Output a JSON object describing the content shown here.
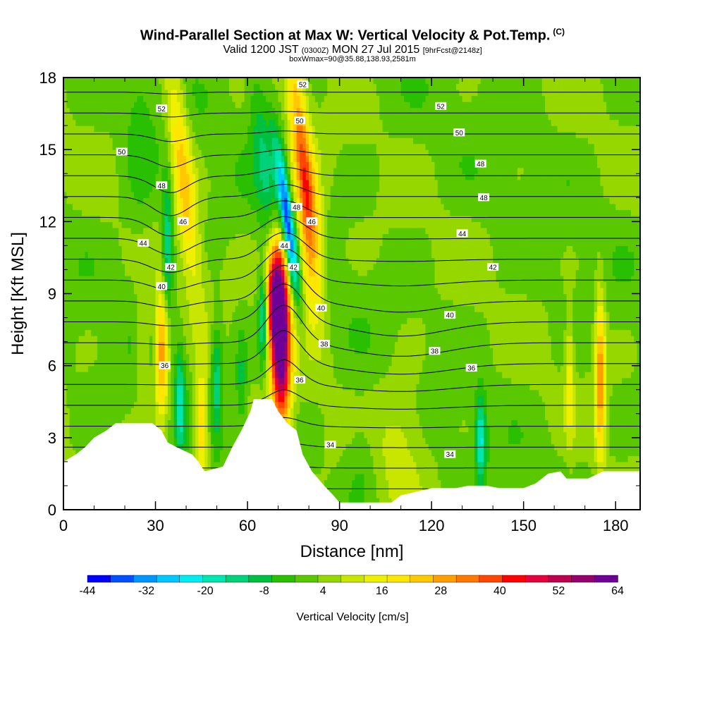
{
  "title": "Wind-Parallel Section at Max W: Vertical Velocity & Pot.Temp.",
  "copyright": "(C)",
  "subtitle_main": "Valid 1200 JST",
  "subtitle_utc": "(0300Z)",
  "subtitle_date": "MON 27 Jul 2015",
  "subtitle_fcst": "[9hrFcst@2148z]",
  "subtitle_box": "boxWmax=90@35.88,138.93,2581m",
  "chart_data": {
    "type": "heatmap",
    "xlabel": "Distance [nm]",
    "ylabel": "Height [Kft MSL]",
    "xlim": [
      0,
      188
    ],
    "ylim": [
      0,
      18
    ],
    "x_ticks": [
      "0",
      "30",
      "60",
      "90",
      "120",
      "150",
      "180"
    ],
    "y_ticks": [
      "0",
      "3",
      "6",
      "9",
      "12",
      "15",
      "18"
    ],
    "colorbar": {
      "label": "Vertical Velocity [cm/s]",
      "labels": [
        "-44",
        "-32",
        "-20",
        "-8",
        "4",
        "16",
        "28",
        "40",
        "52",
        "64"
      ],
      "colors": [
        "#0000ff",
        "#0050ff",
        "#0096ff",
        "#00c8ff",
        "#00eef0",
        "#00e6b0",
        "#00d27a",
        "#00c040",
        "#28c000",
        "#5ac800",
        "#96d700",
        "#c8e600",
        "#eef000",
        "#ffe600",
        "#ffc800",
        "#ffa000",
        "#ff7800",
        "#ff4600",
        "#ff0000",
        "#e6003c",
        "#be0050",
        "#96006e",
        "#6e0096"
      ]
    },
    "terrain_kft": [
      [
        0,
        2
      ],
      [
        4,
        2.3
      ],
      [
        7,
        2.6
      ],
      [
        10,
        3
      ],
      [
        14,
        3.3
      ],
      [
        17,
        3.6
      ],
      [
        29,
        3.6
      ],
      [
        32,
        3.3
      ],
      [
        34,
        2.8
      ],
      [
        37,
        2.6
      ],
      [
        42,
        2.3
      ],
      [
        44,
        2
      ],
      [
        46,
        1.6
      ],
      [
        52,
        1.8
      ],
      [
        55,
        2.6
      ],
      [
        58,
        3.3
      ],
      [
        61,
        4.1
      ],
      [
        62,
        4.6
      ],
      [
        68,
        4.6
      ],
      [
        70,
        4.1
      ],
      [
        73,
        3.6
      ],
      [
        76,
        3.3
      ],
      [
        78,
        2.3
      ],
      [
        81,
        1.6
      ],
      [
        85,
        1
      ],
      [
        88,
        0.6
      ],
      [
        90,
        0.3
      ],
      [
        107,
        0.3
      ],
      [
        110,
        0.6
      ],
      [
        120,
        0.9
      ],
      [
        128,
        0.9
      ],
      [
        132,
        1
      ],
      [
        138,
        1
      ],
      [
        142,
        0.9
      ],
      [
        150,
        0.9
      ],
      [
        154,
        1.1
      ],
      [
        158,
        1.5
      ],
      [
        162,
        1.6
      ],
      [
        164,
        1.3
      ],
      [
        171,
        1.3
      ],
      [
        176,
        1.6
      ],
      [
        188,
        1.6
      ]
    ],
    "w_features": [
      {
        "x": 71,
        "z": 7.0,
        "w": 64,
        "sx": 2.2,
        "sz": 2.5,
        "tilt": 0
      },
      {
        "x": 69,
        "z": 9.0,
        "w": 45,
        "sx": 2.0,
        "sz": 1.5,
        "tilt": 0
      },
      {
        "x": 65,
        "z": 8.0,
        "w": -24,
        "sx": 1.0,
        "sz": 1.3,
        "tilt": 0
      },
      {
        "x": 73,
        "z": 12.0,
        "w": -44,
        "sx": 1.5,
        "sz": 2.2,
        "tilt": -0.5
      },
      {
        "x": 78,
        "z": 14.5,
        "w": 30,
        "sx": 2.2,
        "sz": 3.5,
        "tilt": -0.4
      },
      {
        "x": 80,
        "z": 11.0,
        "w": 16,
        "sx": 3.0,
        "sz": 2.5,
        "tilt": 0
      },
      {
        "x": 65,
        "z": 15.0,
        "w": -12,
        "sx": 2.5,
        "sz": 3.0,
        "tilt": -0.4
      },
      {
        "x": 39,
        "z": 14.0,
        "w": 22,
        "sx": 2.5,
        "sz": 3.5,
        "tilt": -0.4
      },
      {
        "x": 34,
        "z": 11.0,
        "w": -20,
        "sx": 1.2,
        "sz": 2.0,
        "tilt": 0
      },
      {
        "x": 32,
        "z": 6.5,
        "w": 30,
        "sx": 1.6,
        "sz": 1.8,
        "tilt": 0
      },
      {
        "x": 26,
        "z": 7.0,
        "w": 10,
        "sx": 1.5,
        "sz": 1.5,
        "tilt": 0
      },
      {
        "x": 38,
        "z": 4.5,
        "w": -20,
        "sx": 1.2,
        "sz": 1.6,
        "tilt": 0
      },
      {
        "x": 45,
        "z": 3.5,
        "w": 24,
        "sx": 1.5,
        "sz": 1.5,
        "tilt": 0
      },
      {
        "x": 50,
        "z": 5.5,
        "w": -16,
        "sx": 1.3,
        "sz": 1.6,
        "tilt": 0
      },
      {
        "x": 58,
        "z": 5.5,
        "w": -10,
        "sx": 1.2,
        "sz": 1.5,
        "tilt": 0
      },
      {
        "x": 175,
        "z": 5.5,
        "w": 28,
        "sx": 1.2,
        "sz": 2.5,
        "tilt": 0
      },
      {
        "x": 165,
        "z": 5.5,
        "w": 12,
        "sx": 1.0,
        "sz": 2.0,
        "tilt": 0
      },
      {
        "x": 136,
        "z": 3.0,
        "w": -24,
        "sx": 1.2,
        "sz": 1.2,
        "tilt": 0
      },
      {
        "x": 97,
        "z": 2.0,
        "w": -6,
        "sx": 4.0,
        "sz": 1.5,
        "tilt": 0
      },
      {
        "x": 110,
        "z": 3.0,
        "w": 8,
        "sx": 6.0,
        "sz": 2.0,
        "tilt": 0
      },
      {
        "x": 25,
        "z": 15.5,
        "w": -6,
        "sx": 4.0,
        "sz": 3.0,
        "tilt": 0
      }
    ],
    "theta_labels": [
      {
        "x": 32,
        "z": 16.7,
        "v": "52"
      },
      {
        "x": 78,
        "z": 17.7,
        "v": "52"
      },
      {
        "x": 123,
        "z": 16.8,
        "v": "52"
      },
      {
        "x": 19,
        "z": 14.9,
        "v": "50"
      },
      {
        "x": 77,
        "z": 16.2,
        "v": "50"
      },
      {
        "x": 129,
        "z": 15.7,
        "v": "50"
      },
      {
        "x": 32,
        "z": 13.5,
        "v": "48"
      },
      {
        "x": 76,
        "z": 12.6,
        "v": "48"
      },
      {
        "x": 136,
        "z": 14.4,
        "v": "48"
      },
      {
        "x": 137,
        "z": 13.0,
        "v": "48"
      },
      {
        "x": 39,
        "z": 12.0,
        "v": "46"
      },
      {
        "x": 81,
        "z": 12.0,
        "v": "46"
      },
      {
        "x": 26,
        "z": 11.1,
        "v": "44"
      },
      {
        "x": 72,
        "z": 11.0,
        "v": "44"
      },
      {
        "x": 130,
        "z": 11.5,
        "v": "44"
      },
      {
        "x": 35,
        "z": 10.1,
        "v": "42"
      },
      {
        "x": 75,
        "z": 10.1,
        "v": "42"
      },
      {
        "x": 140,
        "z": 10.1,
        "v": "42"
      },
      {
        "x": 32,
        "z": 9.3,
        "v": "40"
      },
      {
        "x": 84,
        "z": 8.4,
        "v": "40"
      },
      {
        "x": 126,
        "z": 8.1,
        "v": "40"
      },
      {
        "x": 85,
        "z": 6.9,
        "v": "38"
      },
      {
        "x": 121,
        "z": 6.6,
        "v": "38"
      },
      {
        "x": 33,
        "z": 6.0,
        "v": "36"
      },
      {
        "x": 77,
        "z": 5.4,
        "v": "36"
      },
      {
        "x": 133,
        "z": 5.9,
        "v": "36"
      },
      {
        "x": 87,
        "z": 2.7,
        "v": "34"
      },
      {
        "x": 126,
        "z": 2.3,
        "v": "34"
      }
    ]
  }
}
